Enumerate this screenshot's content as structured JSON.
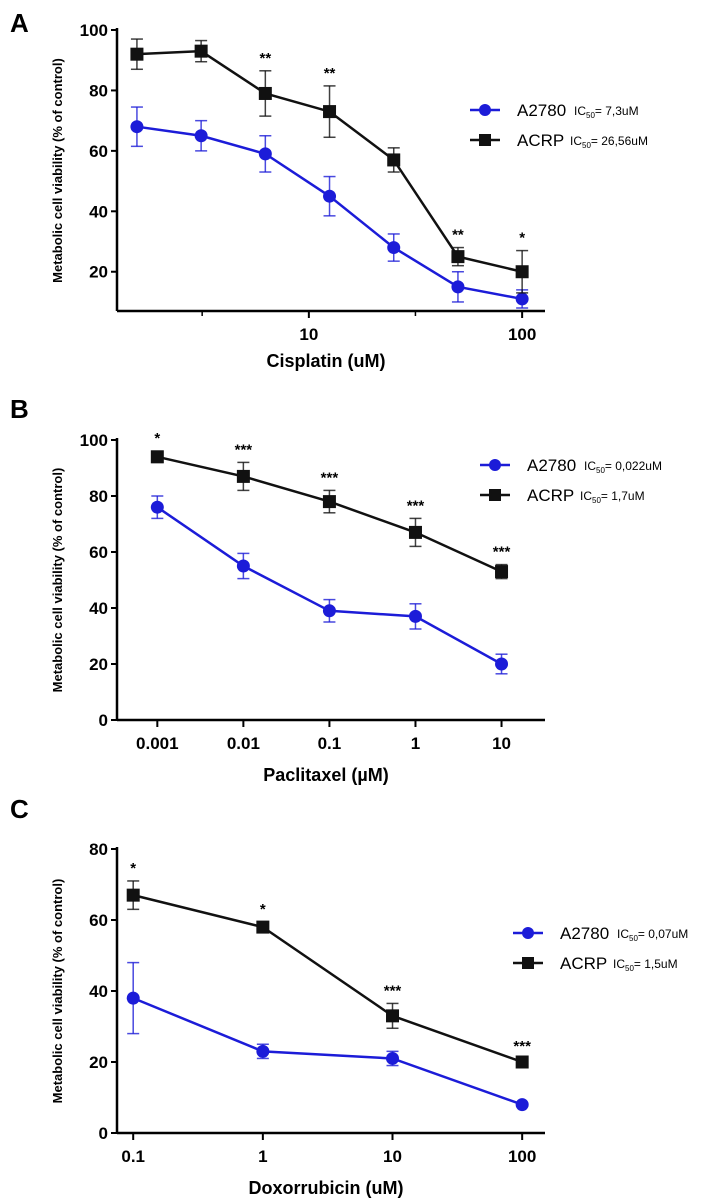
{
  "colors": {
    "A2780": "#1c1cd8",
    "ACRP": "#111111"
  },
  "chart_data": [
    {
      "panel": "A",
      "type": "line",
      "xscale": "log",
      "xlabel": "Cisplatin (uM)",
      "ylabel": "Metabolic cell viability (% of control)",
      "xlim": [
        1.26,
        128
      ],
      "ylim": [
        8,
        100
      ],
      "xticks": [
        {
          "value": 10,
          "label": "10"
        },
        {
          "value": 100,
          "label": "100"
        }
      ],
      "xminor": [
        3.16,
        31.6
      ],
      "yticks": [
        20,
        40,
        60,
        80,
        100
      ],
      "x": [
        1.5625,
        3.125,
        6.25,
        12.5,
        25,
        50,
        100
      ],
      "series": [
        {
          "name": "A2780",
          "ic50_label": "IC",
          "ic50_sub": "50",
          "ic50_value": "= 7,3uM",
          "marker": "circle",
          "values": [
            68,
            65,
            59,
            45,
            28,
            15,
            11
          ],
          "errors": [
            6.5,
            5,
            6,
            6.5,
            4.5,
            5,
            3
          ]
        },
        {
          "name": "ACRP",
          "ic50_label": "IC",
          "ic50_sub": "50",
          "ic50_value": "= 26,56uM",
          "marker": "square",
          "values": [
            92,
            93,
            79,
            73,
            57,
            25,
            20
          ],
          "errors": [
            5,
            3.5,
            7.5,
            8.5,
            4,
            3,
            7
          ]
        }
      ],
      "significance": [
        "",
        "",
        "**",
        "**",
        "",
        "**",
        "*"
      ],
      "legend": "top-right"
    },
    {
      "panel": "B",
      "type": "line",
      "xscale": "log",
      "xlabel": "Paclitaxel (µM)",
      "ylabel": "Metabolic cell viability (% of control)",
      "xlim": [
        0.00034,
        32
      ],
      "ylim": [
        0,
        100
      ],
      "xticks": [
        {
          "value": 0.001,
          "label": "0.001"
        },
        {
          "value": 0.01,
          "label": "0.01"
        },
        {
          "value": 0.1,
          "label": "0.1"
        },
        {
          "value": 1,
          "label": "1"
        },
        {
          "value": 10,
          "label": "10"
        }
      ],
      "xminor": [],
      "yticks": [
        0,
        20,
        40,
        60,
        80,
        100
      ],
      "x": [
        0.001,
        0.01,
        0.1,
        1,
        10
      ],
      "series": [
        {
          "name": "A2780",
          "ic50_label": "IC",
          "ic50_sub": "50",
          "ic50_value": "= 0,022uM",
          "marker": "circle",
          "values": [
            76,
            55,
            39,
            37,
            20
          ],
          "errors": [
            4,
            4.5,
            4,
            4.5,
            3.5
          ]
        },
        {
          "name": "ACRP",
          "ic50_label": "IC",
          "ic50_sub": "50",
          "ic50_value": "= 1,7uM",
          "marker": "square",
          "values": [
            94,
            87,
            78,
            67,
            53
          ],
          "errors": [
            2,
            5,
            4,
            5,
            2.5
          ]
        }
      ],
      "significance": [
        "*",
        "***",
        "***",
        "***",
        "***"
      ],
      "legend": "top-right"
    },
    {
      "panel": "C",
      "type": "line",
      "xscale": "log",
      "xlabel": "Doxorrubicin (uM)",
      "ylabel": "Metabolic cell viability (% of control)",
      "xlim": [
        0.075,
        150
      ],
      "ylim": [
        0,
        80
      ],
      "xticks": [
        {
          "value": 0.1,
          "label": "0.1"
        },
        {
          "value": 1,
          "label": "1"
        },
        {
          "value": 10,
          "label": "10"
        },
        {
          "value": 100,
          "label": "100"
        }
      ],
      "xminor": [],
      "yticks": [
        0,
        20,
        40,
        60,
        80
      ],
      "x": [
        0.1,
        1,
        10,
        100
      ],
      "series": [
        {
          "name": "A2780",
          "ic50_label": "IC",
          "ic50_sub": "50",
          "ic50_value": "= 0,07uM",
          "marker": "circle",
          "values": [
            38,
            23,
            21,
            8
          ],
          "errors": [
            10,
            2,
            2,
            0.5
          ]
        },
        {
          "name": "ACRP",
          "ic50_label": "IC",
          "ic50_sub": "50",
          "ic50_value": "= 1,5uM",
          "marker": "square",
          "values": [
            67,
            58,
            33,
            20
          ],
          "errors": [
            4,
            1.5,
            3.5,
            0.8
          ]
        }
      ],
      "significance": [
        "*",
        "*",
        "***",
        "***"
      ],
      "legend": "right"
    }
  ]
}
